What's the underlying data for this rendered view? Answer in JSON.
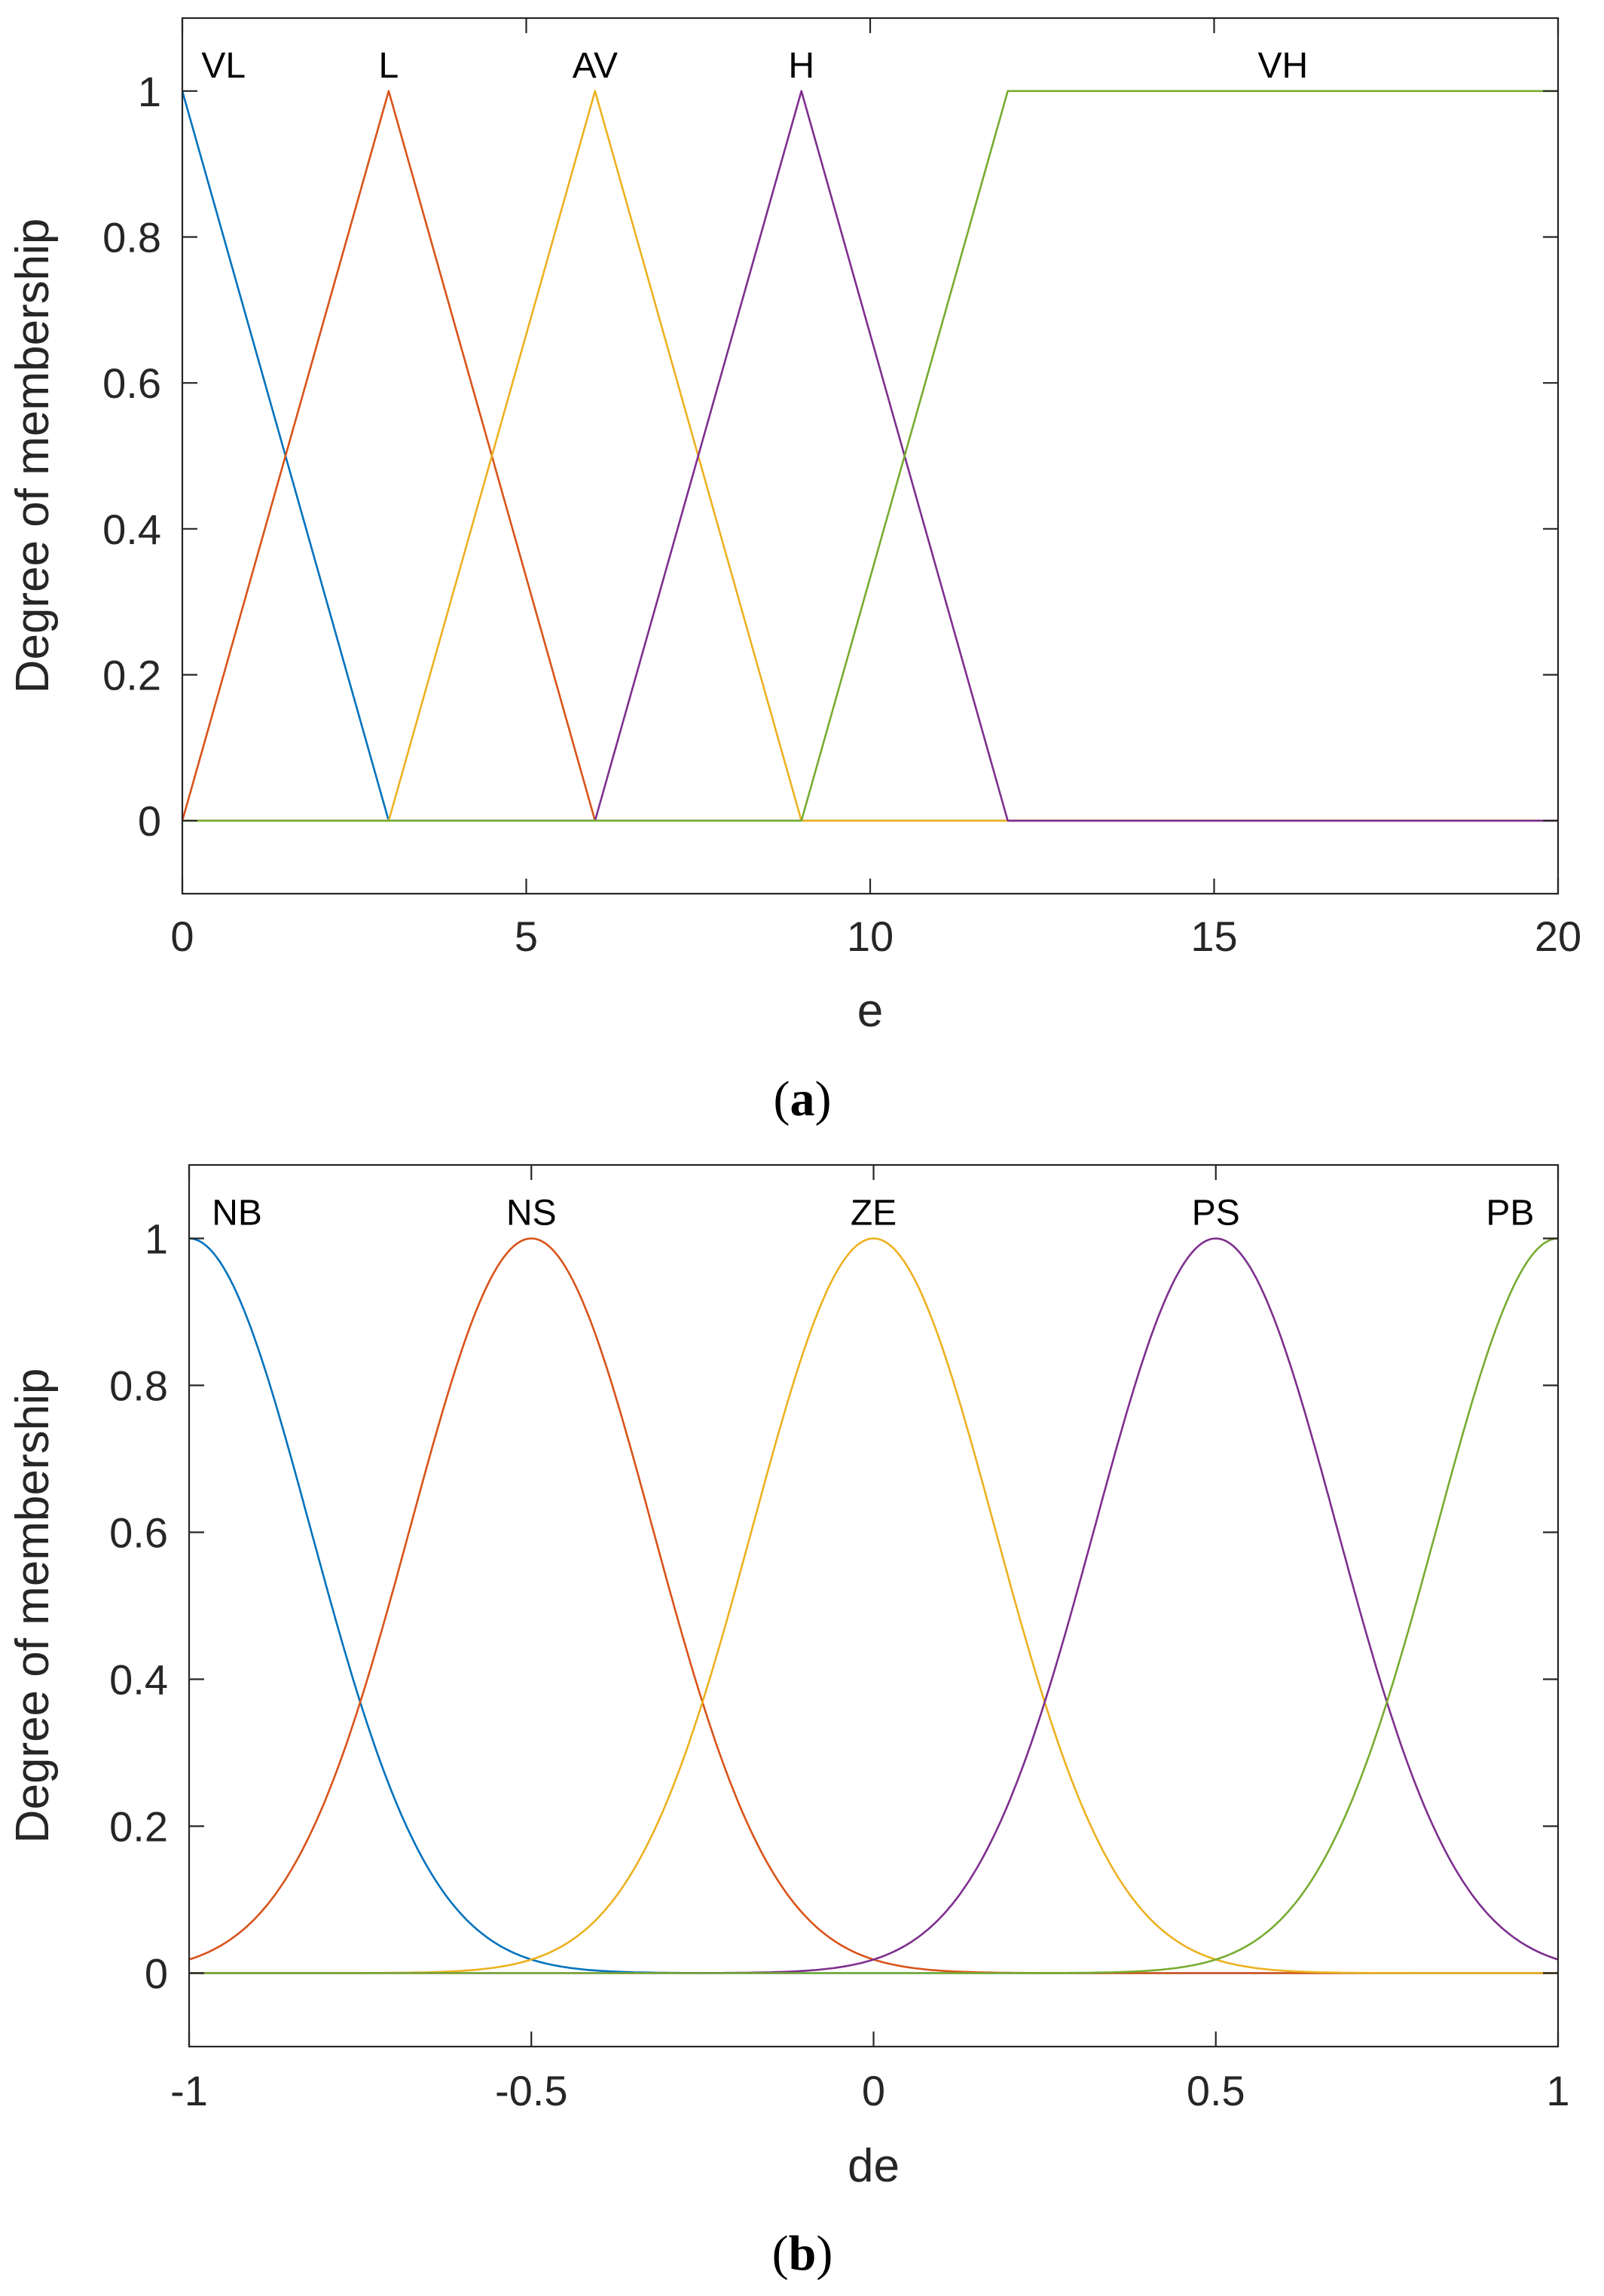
{
  "chart_data": [
    {
      "type": "line",
      "caption": "a",
      "xlabel": "e",
      "ylabel": "Degree of membership",
      "xlim": [
        0,
        20
      ],
      "ylim": [
        -0.1,
        1.1
      ],
      "xticks": [
        "0",
        "5",
        "10",
        "15",
        "20"
      ],
      "yticks": [
        "0",
        "0.2",
        "0.4",
        "0.6",
        "0.8",
        "1"
      ],
      "series": [
        {
          "name": "VL",
          "color": "#0072BD",
          "x": [
            0,
            3,
            20
          ],
          "y": [
            1,
            0,
            0
          ]
        },
        {
          "name": "L",
          "color": "#D95319",
          "x": [
            0,
            3,
            6,
            20
          ],
          "y": [
            0,
            1,
            0,
            0
          ]
        },
        {
          "name": "AV",
          "color": "#EDB120",
          "x": [
            0,
            3,
            6,
            9,
            20
          ],
          "y": [
            0,
            0,
            1,
            0,
            0
          ]
        },
        {
          "name": "H",
          "color": "#7E2F8E",
          "x": [
            0,
            6,
            9,
            12,
            20
          ],
          "y": [
            0,
            0,
            1,
            0,
            0
          ]
        },
        {
          "name": "VH",
          "color": "#77AC30",
          "x": [
            0,
            9,
            12,
            20
          ],
          "y": [
            0,
            0,
            1,
            1
          ]
        }
      ],
      "labels": [
        {
          "text": "VL",
          "x": 0.6
        },
        {
          "text": "L",
          "x": 3
        },
        {
          "text": "AV",
          "x": 6
        },
        {
          "text": "H",
          "x": 9
        },
        {
          "text": "VH",
          "x": 16
        }
      ]
    },
    {
      "type": "line",
      "caption": "b",
      "xlabel": "de",
      "ylabel": "Degree of membership",
      "xlim": [
        -1,
        1
      ],
      "ylim": [
        -0.1,
        1.1
      ],
      "xticks": [
        "-1",
        "-0.5",
        "0",
        "0.5",
        "1"
      ],
      "yticks": [
        "0",
        "0.2",
        "0.4",
        "0.6",
        "0.8",
        "1"
      ],
      "function": "gaussian",
      "sigma": 0.177,
      "series": [
        {
          "name": "NB",
          "color": "#0072BD",
          "center": -1
        },
        {
          "name": "NS",
          "color": "#D95319",
          "center": -0.5
        },
        {
          "name": "ZE",
          "color": "#EDB120",
          "center": 0
        },
        {
          "name": "PS",
          "color": "#7E2F8E",
          "center": 0.5
        },
        {
          "name": "PB",
          "color": "#77AC30",
          "center": 1
        }
      ],
      "labels": [
        {
          "text": "NB",
          "x": -0.93
        },
        {
          "text": "NS",
          "x": -0.5
        },
        {
          "text": "ZE",
          "x": 0
        },
        {
          "text": "PS",
          "x": 0.5
        },
        {
          "text": "PB",
          "x": 0.93
        }
      ]
    }
  ]
}
